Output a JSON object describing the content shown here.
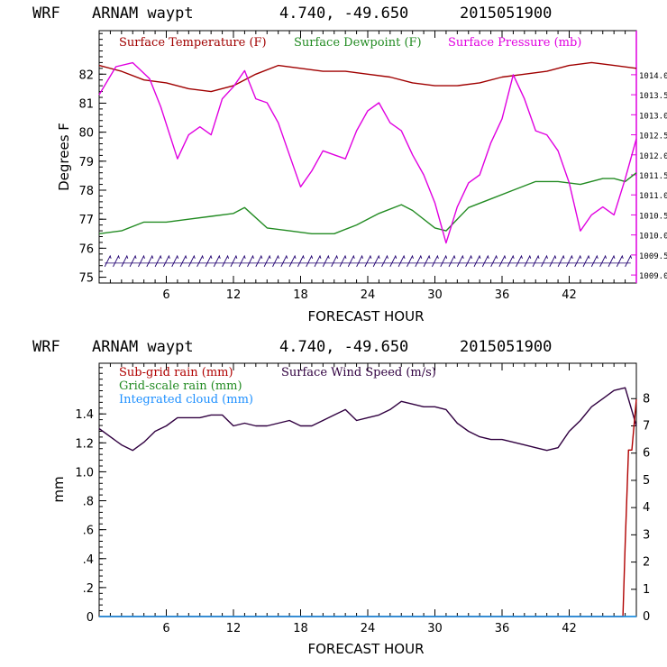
{
  "colors": {
    "temperature": "#a00000",
    "dewpoint": "#228b22",
    "pressure": "#e000e0",
    "subgrid_rain": "#b00000",
    "gridscale_rain": "#228b22",
    "cloud": "#1e90ff",
    "wind": "#300040",
    "barbs": "#200070"
  },
  "chart_data": [
    {
      "type": "line",
      "header": {
        "model": "WRF",
        "site": "ARNAM waypt",
        "coords": "4.740, -49.650",
        "init": "2015051900"
      },
      "xlabel": "FORECAST HOUR",
      "ylabel": "Degrees F",
      "xlim": [
        0,
        48
      ],
      "ylim": [
        74.8,
        83.5
      ],
      "y2lim": [
        1008.8,
        1015.1
      ],
      "x_ticks": [
        6,
        12,
        18,
        24,
        30,
        36,
        42
      ],
      "y_ticks": [
        75,
        76,
        77,
        78,
        79,
        80,
        81,
        82
      ],
      "y2_ticks": [
        "1009.0",
        "1009.5",
        "1010.0",
        "1010.5",
        "1011.0",
        "1011.5",
        "1012.0",
        "1012.5",
        "1013.0",
        "1013.5",
        "1014.0"
      ],
      "legend": [
        "Surface Temperature (F)",
        "Surface Dewpoint (F)",
        "Surface Pressure (mb)"
      ],
      "series": [
        {
          "name": "Surface Temperature (F)",
          "axis": "left",
          "x": [
            0,
            2,
            4,
            6,
            8,
            10,
            12,
            14,
            16,
            18,
            20,
            22,
            24,
            26,
            28,
            30,
            32,
            34,
            36,
            38,
            40,
            42,
            44,
            46,
            48
          ],
          "values": [
            82.3,
            82.1,
            81.8,
            81.7,
            81.5,
            81.4,
            81.6,
            82.0,
            82.3,
            82.2,
            82.1,
            82.1,
            82.0,
            81.9,
            81.7,
            81.6,
            81.6,
            81.7,
            81.9,
            82.0,
            82.1,
            82.3,
            82.4,
            82.3,
            82.2
          ]
        },
        {
          "name": "Surface Dewpoint (F)",
          "axis": "left",
          "x": [
            0,
            2,
            4,
            6,
            8,
            10,
            12,
            13,
            15,
            17,
            19,
            21,
            23,
            25,
            27,
            28,
            30,
            31,
            33,
            35,
            37,
            39,
            41,
            43,
            45,
            46,
            47,
            48
          ],
          "values": [
            76.5,
            76.6,
            76.9,
            76.9,
            77.0,
            77.1,
            77.2,
            77.4,
            76.7,
            76.6,
            76.5,
            76.5,
            76.8,
            77.2,
            77.5,
            77.3,
            76.7,
            76.6,
            77.4,
            77.7,
            78.0,
            78.3,
            78.3,
            78.2,
            78.4,
            78.4,
            78.3,
            78.6
          ]
        },
        {
          "name": "Surface Pressure (mb)",
          "axis": "right",
          "x": [
            0,
            1.5,
            3,
            4.5,
            5.5,
            7,
            8,
            9,
            10,
            11,
            12,
            13,
            14,
            15,
            16,
            17,
            18,
            19,
            20,
            21,
            22,
            23,
            24,
            25,
            26,
            27,
            28,
            29,
            30,
            31,
            32,
            33,
            34,
            35,
            36,
            37,
            38,
            39,
            40,
            41,
            42,
            43,
            44,
            45,
            46,
            47,
            48
          ],
          "values": [
            1013.5,
            1014.2,
            1014.3,
            1013.9,
            1013.2,
            1011.9,
            1012.5,
            1012.7,
            1012.5,
            1013.4,
            1013.7,
            1014.1,
            1013.4,
            1013.3,
            1012.8,
            1012.0,
            1011.2,
            1011.6,
            1012.1,
            1012.0,
            1011.9,
            1012.6,
            1013.1,
            1013.3,
            1012.8,
            1012.6,
            1012.0,
            1011.5,
            1010.8,
            1009.8,
            1010.7,
            1011.3,
            1011.5,
            1012.3,
            1012.9,
            1014.0,
            1013.4,
            1012.6,
            1012.5,
            1012.1,
            1011.3,
            1010.1,
            1010.5,
            1010.7,
            1010.5,
            1011.4,
            1012.4
          ]
        },
        {
          "name": "Wind barbs",
          "axis": "left",
          "x": [
            0,
            48
          ],
          "values": [
            75.55,
            75.55
          ]
        }
      ]
    },
    {
      "type": "line",
      "header": {
        "model": "WRF",
        "site": "ARNAM waypt",
        "coords": "4.740, -49.650",
        "init": "2015051900"
      },
      "xlabel": "FORECAST HOUR",
      "ylabel": "mm",
      "xlim": [
        0,
        48
      ],
      "ylim": [
        0,
        1.75
      ],
      "y2lim": [
        0,
        9.3
      ],
      "x_ticks": [
        6,
        12,
        18,
        24,
        30,
        36,
        42
      ],
      "y_ticks": [
        0,
        0.2,
        0.4,
        0.6,
        0.8,
        1.0,
        1.2,
        1.4
      ],
      "y_tick_labels": [
        "0",
        ".2",
        ".4",
        ".6",
        ".8",
        "1.0",
        "1.2",
        "1.4"
      ],
      "y2_ticks": [
        "0",
        "1",
        "2",
        "3",
        "4",
        "5",
        "6",
        "7",
        "8"
      ],
      "legend": [
        "Sub-grid rain (mm)",
        "Surface Wind Speed (m/s)",
        "Grid-scale rain (mm)",
        "Integrated cloud (mm)"
      ],
      "series": [
        {
          "name": "Surface Wind Speed (m/s)",
          "axis": "right",
          "x": [
            0,
            1,
            2,
            3,
            4,
            5,
            6,
            7,
            8,
            9,
            10,
            11,
            12,
            13,
            14,
            15,
            16,
            17,
            18,
            19,
            20,
            21,
            22,
            23,
            24,
            25,
            26,
            27,
            28,
            29,
            30,
            31,
            32,
            33,
            34,
            35,
            36,
            37,
            38,
            39,
            40,
            41,
            42,
            43,
            44,
            45,
            46,
            47,
            48
          ],
          "values": [
            6.9,
            6.6,
            6.3,
            6.1,
            6.4,
            6.8,
            7.0,
            7.3,
            7.3,
            7.3,
            7.4,
            7.4,
            7.0,
            7.1,
            7.0,
            7.0,
            7.1,
            7.2,
            7.0,
            7.0,
            7.2,
            7.4,
            7.6,
            7.2,
            7.3,
            7.4,
            7.6,
            7.9,
            7.8,
            7.7,
            7.7,
            7.6,
            7.1,
            6.8,
            6.6,
            6.5,
            6.5,
            6.4,
            6.3,
            6.2,
            6.1,
            6.2,
            6.8,
            7.2,
            7.7,
            8.0,
            8.3,
            8.4,
            7.0
          ]
        },
        {
          "name": "Sub-grid rain (mm)",
          "axis": "left",
          "x": [
            0,
            46.8,
            47.0,
            47.3,
            47.6,
            48
          ],
          "values": [
            0,
            0,
            0.5,
            1.15,
            1.15,
            1.5
          ]
        },
        {
          "name": "Grid-scale rain (mm)",
          "axis": "left",
          "x": [
            0,
            48
          ],
          "values": [
            0,
            0
          ]
        },
        {
          "name": "Integrated cloud (mm)",
          "axis": "left",
          "x": [
            0,
            48
          ],
          "values": [
            0,
            0
          ]
        }
      ]
    }
  ]
}
